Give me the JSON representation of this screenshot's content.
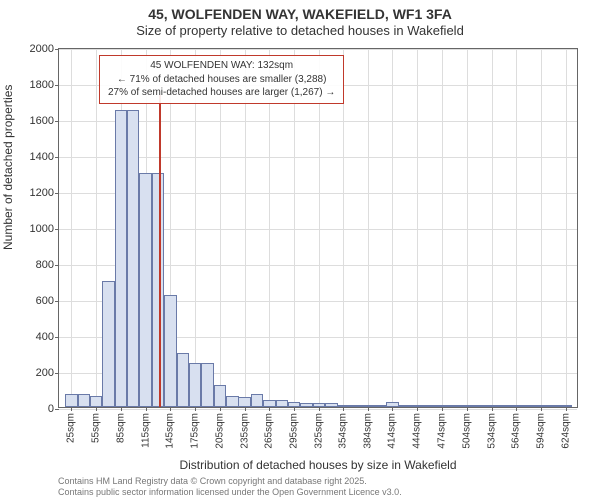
{
  "title": {
    "main": "45, WOLFENDEN WAY, WAKEFIELD, WF1 3FA",
    "sub": "Size of property relative to detached houses in Wakefield"
  },
  "chart": {
    "type": "histogram",
    "ylabel": "Number of detached properties",
    "xlabel": "Distribution of detached houses by size in Wakefield",
    "ylim": [
      0,
      2000
    ],
    "ytick_step": 200,
    "xticks": [
      "25sqm",
      "55sqm",
      "85sqm",
      "115sqm",
      "145sqm",
      "175sqm",
      "205sqm",
      "235sqm",
      "265sqm",
      "295sqm",
      "325sqm",
      "354sqm",
      "384sqm",
      "414sqm",
      "444sqm",
      "474sqm",
      "504sqm",
      "534sqm",
      "564sqm",
      "594sqm",
      "624sqm"
    ],
    "bars": [
      {
        "x": 25,
        "v": 70
      },
      {
        "x": 40,
        "v": 70
      },
      {
        "x": 55,
        "v": 60
      },
      {
        "x": 70,
        "v": 700
      },
      {
        "x": 85,
        "v": 1650
      },
      {
        "x": 100,
        "v": 1650
      },
      {
        "x": 115,
        "v": 1300
      },
      {
        "x": 130,
        "v": 1300
      },
      {
        "x": 145,
        "v": 620
      },
      {
        "x": 160,
        "v": 300
      },
      {
        "x": 175,
        "v": 245
      },
      {
        "x": 190,
        "v": 245
      },
      {
        "x": 205,
        "v": 120
      },
      {
        "x": 220,
        "v": 60
      },
      {
        "x": 235,
        "v": 55
      },
      {
        "x": 250,
        "v": 70
      },
      {
        "x": 265,
        "v": 40
      },
      {
        "x": 280,
        "v": 40
      },
      {
        "x": 295,
        "v": 30
      },
      {
        "x": 310,
        "v": 20
      },
      {
        "x": 325,
        "v": 25
      },
      {
        "x": 340,
        "v": 20
      },
      {
        "x": 354,
        "v": 5
      },
      {
        "x": 369,
        "v": 5
      },
      {
        "x": 384,
        "v": 8
      },
      {
        "x": 399,
        "v": 7
      },
      {
        "x": 414,
        "v": 30
      },
      {
        "x": 429,
        "v": 5
      },
      {
        "x": 444,
        "v": 5
      },
      {
        "x": 459,
        "v": 5
      },
      {
        "x": 474,
        "v": 4
      },
      {
        "x": 489,
        "v": 4
      },
      {
        "x": 504,
        "v": 3
      },
      {
        "x": 519,
        "v": 3
      },
      {
        "x": 534,
        "v": 3
      },
      {
        "x": 549,
        "v": 3
      },
      {
        "x": 564,
        "v": 2
      },
      {
        "x": 579,
        "v": 2
      },
      {
        "x": 594,
        "v": 2
      },
      {
        "x": 609,
        "v": 2
      },
      {
        "x": 624,
        "v": 2
      }
    ],
    "x_range": [
      10,
      640
    ],
    "bar_fill": "#d8e0f0",
    "bar_stroke": "#6a7aa8",
    "background": "#ffffff",
    "grid_color": "#dddddd",
    "marker": {
      "x": 132,
      "color": "#c0392b",
      "line1": "45 WOLFENDEN WAY: 132sqm",
      "line2": "← 71% of detached houses are smaller (3,288)",
      "line3": "27% of semi-detached houses are larger (1,267) →"
    }
  },
  "footer": {
    "line1": "Contains HM Land Registry data © Crown copyright and database right 2025.",
    "line2": "Contains public sector information licensed under the Open Government Licence v3.0."
  }
}
